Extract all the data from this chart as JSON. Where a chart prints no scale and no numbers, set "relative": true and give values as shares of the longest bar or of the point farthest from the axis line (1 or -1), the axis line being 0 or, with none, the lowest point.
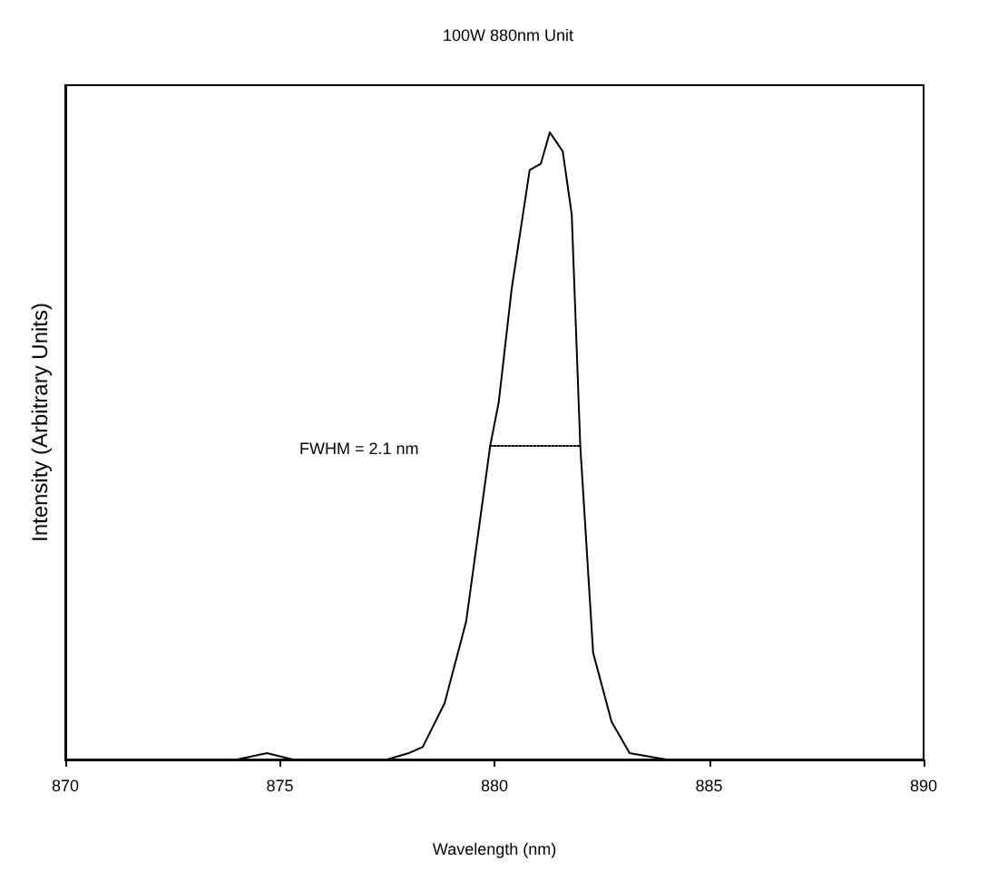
{
  "chart_data": {
    "type": "line",
    "title": "100W 880nm Unit",
    "xlabel": "Wavelength (nm)",
    "ylabel": "Intensity (Arbitrary Units)",
    "relative": true,
    "xlim": [
      870,
      890
    ],
    "xticks": [
      870,
      875,
      880,
      885,
      890
    ],
    "grid": false,
    "marker": "none",
    "annotations": [
      "FWHM = 2.1 nm"
    ],
    "series": [
      {
        "color": "#000000",
        "line_style": "solid",
        "x": [
          870,
          872,
          874,
          874.7,
          875.3,
          876.5,
          877.5,
          878.0,
          878.33,
          878.84,
          879.34,
          879.6,
          879.9,
          880.1,
          880.4,
          880.82,
          881.08,
          881.29,
          881.59,
          881.8,
          882.0,
          882.3,
          882.73,
          883.15,
          884,
          886,
          888,
          890
        ],
        "values": [
          0,
          0,
          0,
          0.01,
          0,
          0,
          0,
          0.01,
          0.02,
          0.09,
          0.22,
          0.35,
          0.5,
          0.57,
          0.75,
          0.94,
          0.95,
          1,
          0.97,
          0.87,
          0.5,
          0.17,
          0.06,
          0.01,
          0,
          0,
          0,
          0
        ]
      },
      {
        "color": "#000000",
        "line_style": "dotted",
        "x": [
          879.9,
          882.0
        ],
        "values": [
          0.5,
          0.5
        ]
      }
    ]
  }
}
